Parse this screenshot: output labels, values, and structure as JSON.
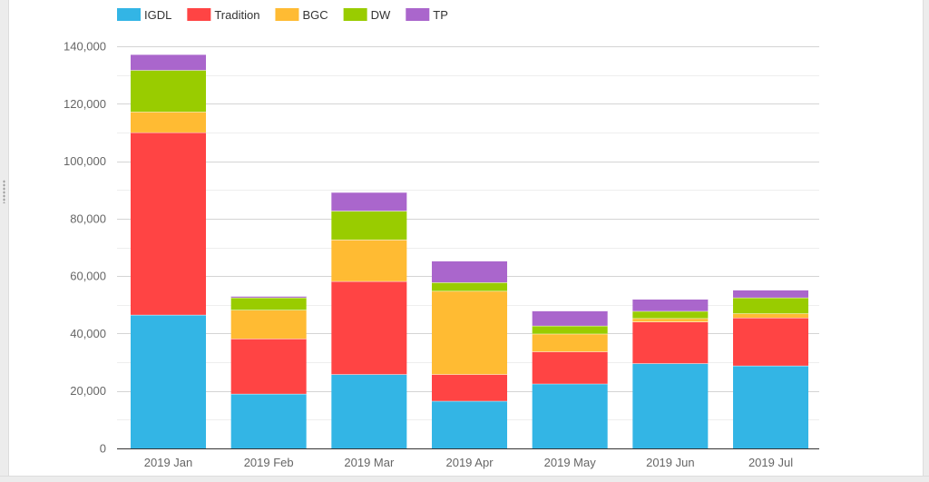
{
  "chart_data": {
    "type": "bar",
    "stacked": true,
    "categories": [
      "2019 Jan",
      "2019 Feb",
      "2019 Mar",
      "2019 Apr",
      "2019 May",
      "2019 Jun",
      "2019 Jul"
    ],
    "series": [
      {
        "name": "IGDL",
        "color": "#33b5e5",
        "values": [
          46500,
          19000,
          25800,
          16500,
          22500,
          29600,
          28800
        ]
      },
      {
        "name": "Tradition",
        "color": "#ff4444",
        "values": [
          63500,
          19200,
          32400,
          9300,
          11200,
          14500,
          16700
        ]
      },
      {
        "name": "BGC",
        "color": "#ffbb33",
        "values": [
          7200,
          10000,
          14500,
          29000,
          6200,
          1200,
          1500
        ]
      },
      {
        "name": "DW",
        "color": "#99cc00",
        "values": [
          14500,
          4300,
          10000,
          3000,
          2800,
          2500,
          5500
        ]
      },
      {
        "name": "TP",
        "color": "#aa66cc",
        "values": [
          5500,
          500,
          6500,
          7500,
          5200,
          4200,
          2700
        ]
      }
    ],
    "ylim": [
      0,
      140000
    ],
    "yticks": [
      0,
      20000,
      40000,
      60000,
      80000,
      100000,
      120000,
      140000
    ],
    "ytick_labels": [
      "0",
      "20,000",
      "40,000",
      "60,000",
      "80,000",
      "100,000",
      "120,000",
      "140,000"
    ],
    "grid": true,
    "legend_position": "top-left",
    "title": "",
    "xlabel": "",
    "ylabel": ""
  }
}
